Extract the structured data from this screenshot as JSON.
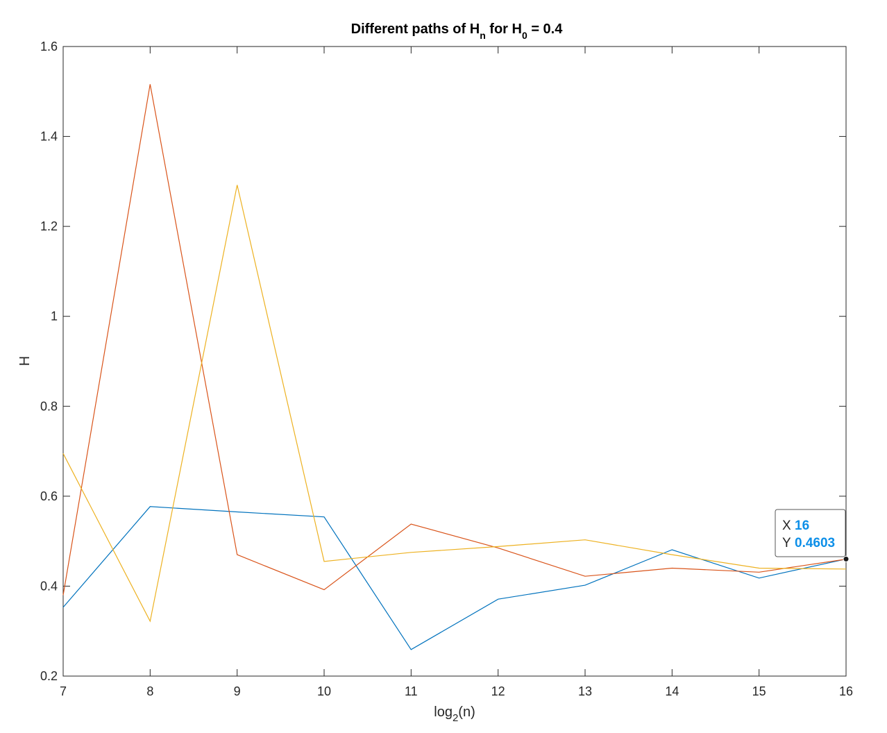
{
  "chart_data": {
    "type": "line",
    "title": {
      "prefix": "Different paths of H",
      "sub1": "n",
      "middle": " for H",
      "sub2": "0",
      "suffix": " = 0.4"
    },
    "xlabel": {
      "prefix": "log",
      "sub": "2",
      "suffix": "(n)"
    },
    "ylabel": "H",
    "xlim": [
      7,
      16
    ],
    "ylim": [
      0.2,
      1.6
    ],
    "xticks": [
      7,
      8,
      9,
      10,
      11,
      12,
      13,
      14,
      15,
      16
    ],
    "yticks": [
      0.2,
      0.4,
      0.6,
      0.8,
      1,
      1.2,
      1.4,
      1.6
    ],
    "ytick_labels": [
      "0.2",
      "0.4",
      "0.6",
      "0.8",
      "1",
      "1.2",
      "1.4",
      "1.6"
    ],
    "grid": false,
    "x": [
      7,
      8,
      9,
      10,
      11,
      12,
      13,
      14,
      15,
      16
    ],
    "series": [
      {
        "color": "#0072BD",
        "values": [
          0.353,
          0.577,
          0.565,
          0.554,
          0.259,
          0.371,
          0.402,
          0.481,
          0.418,
          0.4603
        ]
      },
      {
        "color": "#D95319",
        "values": [
          0.38,
          1.516,
          0.47,
          0.392,
          0.538,
          0.485,
          0.422,
          0.44,
          0.431,
          0.46
        ]
      },
      {
        "color": "#EDB120",
        "values": [
          0.695,
          0.322,
          1.292,
          0.455,
          0.475,
          0.488,
          0.503,
          0.47,
          0.44,
          0.438
        ]
      }
    ],
    "datatip": {
      "x_key": "X",
      "y_key": "Y",
      "x_value": "16",
      "y_value": "0.4603",
      "x": 16,
      "y": 0.4603
    }
  }
}
